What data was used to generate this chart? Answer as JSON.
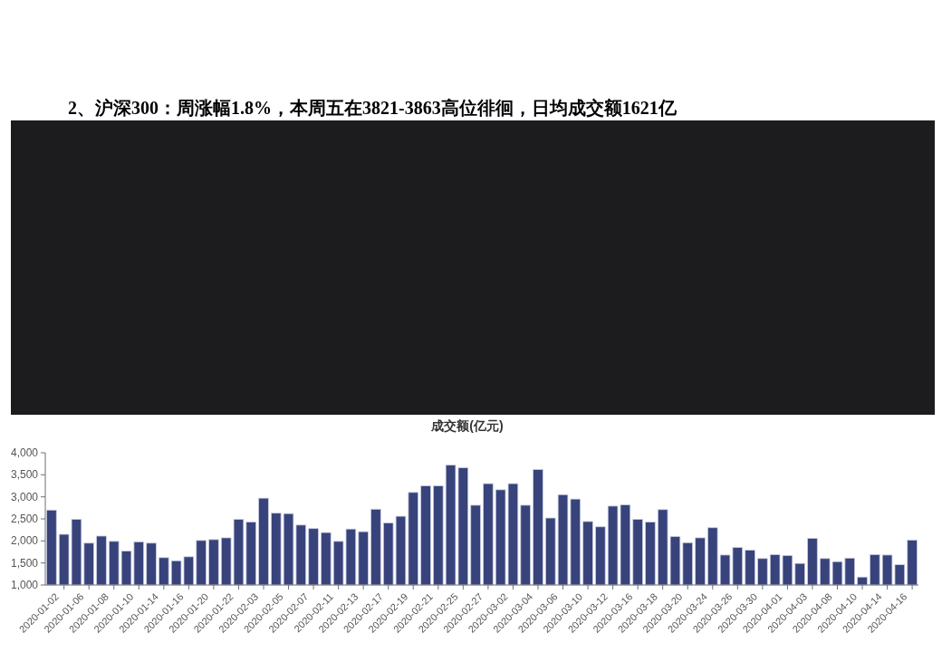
{
  "chart_data": [
    {
      "type": "other",
      "title": "2、沪深300：周涨幅1.8%，本周五在3821-3863高位徘徊，日均成交额1621亿"
    },
    {
      "type": "bar",
      "title": "成交额(亿元)",
      "color": "#37437a",
      "categories": [
        "2020-01-02",
        null,
        "2020-01-06",
        null,
        "2020-01-08",
        null,
        "2020-01-10",
        null,
        "2020-01-14",
        null,
        "2020-01-16",
        null,
        "2020-01-20",
        null,
        "2020-01-22",
        null,
        "2020-02-03",
        null,
        "2020-02-05",
        null,
        "2020-02-07",
        null,
        "2020-02-11",
        null,
        "2020-02-13",
        null,
        "2020-02-17",
        null,
        "2020-02-19",
        null,
        "2020-02-21",
        null,
        "2020-02-25",
        null,
        "2020-02-27",
        null,
        "2020-03-02",
        null,
        "2020-03-04",
        null,
        "2020-03-06",
        null,
        "2020-03-10",
        null,
        "2020-03-12",
        null,
        "2020-03-16",
        null,
        "2020-03-18",
        null,
        "2020-03-20",
        null,
        "2020-03-24",
        null,
        "2020-03-26",
        null,
        "2020-03-30",
        null,
        "2020-04-01",
        null,
        "2020-04-03",
        null,
        "2020-04-08",
        null,
        "2020-04-10",
        null,
        "2020-04-14",
        null,
        "2020-04-16",
        null
      ],
      "values": [
        2700,
        2150,
        2490,
        1950,
        2110,
        1990,
        1770,
        1980,
        1950,
        1620,
        1550,
        1640,
        2010,
        2030,
        2070,
        2490,
        2430,
        2970,
        2630,
        2620,
        2360,
        2280,
        2190,
        1990,
        2270,
        2210,
        2720,
        2410,
        2560,
        3100,
        3250,
        3250,
        3720,
        3660,
        2810,
        3300,
        3160,
        3300,
        2810,
        3620,
        2520,
        3050,
        2950,
        2440,
        2320,
        2790,
        2820,
        2490,
        2430,
        2710,
        2100,
        1960,
        2070,
        2300,
        1680,
        1850,
        1790,
        1600,
        1690,
        1670,
        1490,
        2060,
        1600,
        1530,
        1610,
        1180,
        1690,
        1680,
        1460,
        2020
      ],
      "ylim": [
        1000,
        4000
      ],
      "yticks": [
        {
          "value": 1000,
          "label": "1,000"
        },
        {
          "value": 1500,
          "label": "1,500"
        },
        {
          "value": 2000,
          "label": "2,000"
        },
        {
          "value": 2500,
          "label": "2,500"
        },
        {
          "value": 3000,
          "label": "3,000"
        },
        {
          "value": 3500,
          "label": "3,500"
        },
        {
          "value": 4000,
          "label": "4,000"
        }
      ]
    }
  ]
}
